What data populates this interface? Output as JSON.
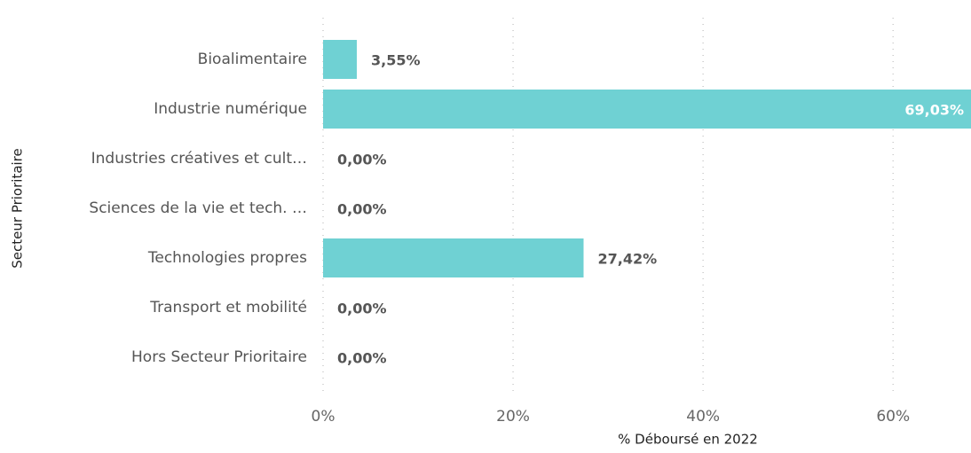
{
  "chart_data": {
    "type": "bar",
    "orientation": "horizontal",
    "x_label": "% Déboursé en 2022",
    "y_label": "Secteur Prioritaire",
    "categories": [
      "Bioalimentaire",
      "Industrie numérique",
      "Industries créatives et cult…",
      "Sciences de la vie et tech. …",
      "Technologies propres",
      "Transport et mobilité",
      "Hors Secteur Prioritaire"
    ],
    "values": [
      3.55,
      69.03,
      0,
      0,
      27.42,
      0,
      0
    ],
    "value_labels": [
      "3,55%",
      "69,03%",
      "0,00%",
      "0,00%",
      "27,42%",
      "0,00%",
      "0,00%"
    ],
    "color": "#6fd1d3",
    "xlim": [
      0,
      68.2
    ],
    "xticks": [
      {
        "value": 0,
        "label": "0%"
      },
      {
        "value": 20,
        "label": "20%"
      },
      {
        "value": 40,
        "label": "40%"
      },
      {
        "value": 60,
        "label": "60%"
      }
    ],
    "grid": true
  }
}
